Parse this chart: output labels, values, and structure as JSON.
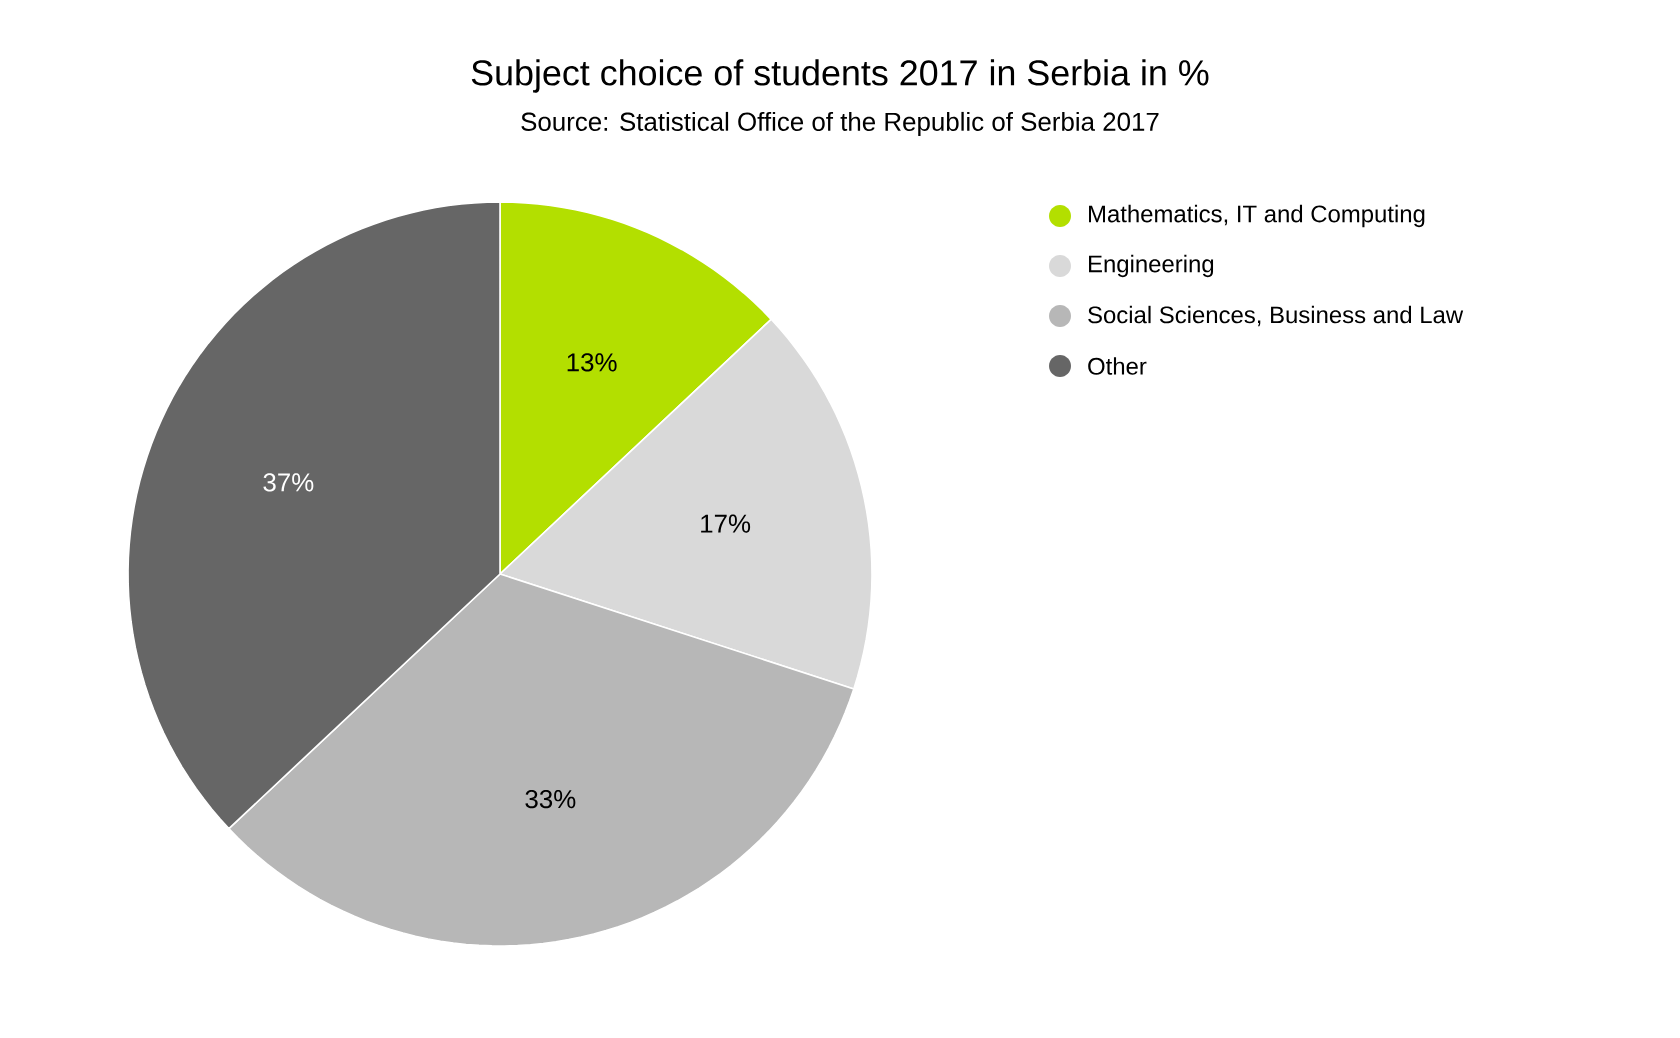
{
  "chart_data": {
    "type": "pie",
    "title": "Subject choice of students 2017 in Serbia in %",
    "subtitle": "Source: Statistical Office of the Republic of Serbia 2017",
    "categories": [
      "Mathematics, IT and Computing",
      "Engineering",
      "Social Sciences, Business and Law",
      "Other"
    ],
    "values": [
      13,
      17,
      33,
      37
    ],
    "value_labels": [
      "13%",
      "17%",
      "33%",
      "37%"
    ],
    "colors": [
      "#b3df00",
      "#d9d9d9",
      "#b7b7b7",
      "#666666"
    ],
    "legend": "right"
  }
}
